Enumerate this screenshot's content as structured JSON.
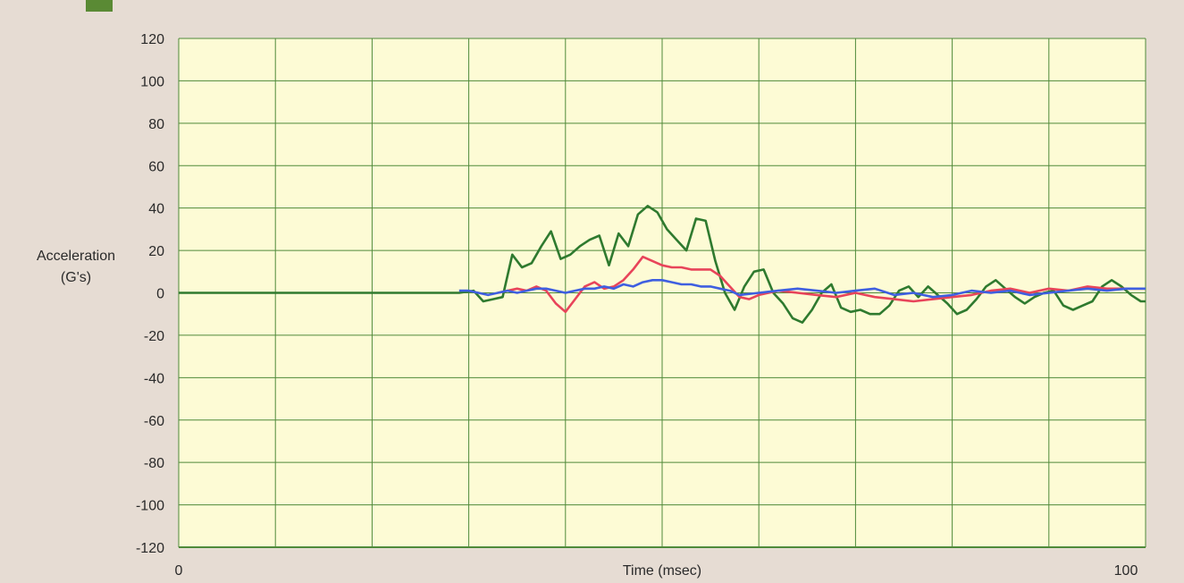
{
  "chart_data": {
    "type": "line",
    "title": "",
    "xlabel": "Time (msec)",
    "ylabel_lines": [
      "Acceleration",
      "(G's)"
    ],
    "xlim": [
      0,
      100
    ],
    "ylim": [
      -120,
      120
    ],
    "x_ticks": [
      0,
      100
    ],
    "x_gridlines": [
      0,
      10,
      20,
      30,
      40,
      50,
      60,
      70,
      80,
      90,
      100
    ],
    "y_ticks": [
      120,
      100,
      80,
      60,
      40,
      20,
      0,
      -20,
      -40,
      -60,
      -80,
      -100,
      -120
    ],
    "grid": true,
    "legend": "none",
    "colors": {
      "plot_bg": "#fdfbd5",
      "grid": "#4f8a3a",
      "page_bg": "#e6dcd3",
      "badge": "#5a8a34"
    },
    "series": [
      {
        "color": "#2f7a2f",
        "x": [
          0,
          29,
          30.5,
          31.5,
          32.5,
          33.5,
          34.5,
          35.5,
          36.5,
          37.5,
          38.5,
          39.5,
          40.5,
          41.5,
          42.5,
          43.5,
          44.5,
          45.5,
          46.5,
          47.5,
          48.5,
          49.5,
          50.5,
          51.5,
          52.5,
          53.5,
          54.5,
          55.5,
          56.5,
          57.5,
          58.5,
          59.5,
          60.5,
          61.5,
          62.5,
          63.5,
          64.5,
          65.5,
          66.5,
          67.5,
          68.5,
          69.5,
          70.5,
          71.5,
          72.5,
          73.5,
          74.5,
          75.5,
          76.5,
          77.5,
          78.5,
          79.5,
          80.5,
          81.5,
          82.5,
          83.5,
          84.5,
          85.5,
          86.5,
          87.5,
          88.5,
          89.5,
          90.5,
          91.5,
          92.5,
          93.5,
          94.5,
          95.5,
          96.5,
          97.5,
          98.5,
          99.5,
          100
        ],
        "y": [
          0,
          0,
          1,
          -4,
          -3,
          -2,
          18,
          12,
          14,
          22,
          29,
          16,
          18,
          22,
          25,
          27,
          13,
          28,
          22,
          37,
          41,
          38,
          30,
          25,
          20,
          35,
          34,
          15,
          0,
          -8,
          3,
          10,
          11,
          0,
          -5,
          -12,
          -14,
          -8,
          0,
          4,
          -7,
          -9,
          -8,
          -10,
          -10,
          -6,
          1,
          3,
          -2,
          3,
          -1,
          -5,
          -10,
          -8,
          -3,
          3,
          6,
          2,
          -2,
          -5,
          -2,
          0,
          1,
          -6,
          -8,
          -6,
          -4,
          3,
          6,
          3,
          -1,
          -4,
          -4
        ]
      },
      {
        "color": "#e8445a",
        "x": [
          33,
          34,
          35,
          36,
          37,
          38,
          39,
          40,
          41,
          42,
          43,
          44,
          45,
          46,
          47,
          48,
          49,
          50,
          51,
          52,
          53,
          54,
          55,
          56,
          57,
          58,
          59,
          60,
          62,
          64,
          66,
          68,
          70,
          72,
          74,
          76,
          78,
          80,
          82,
          84,
          86,
          88,
          90,
          92,
          94,
          96,
          98,
          100
        ],
        "y": [
          0,
          1,
          2,
          1,
          3,
          1,
          -5,
          -9,
          -3,
          3,
          5,
          2,
          3,
          6,
          11,
          17,
          15,
          13,
          12,
          12,
          11,
          11,
          11,
          8,
          3,
          -2,
          -3,
          -1,
          1,
          0,
          -1,
          -2,
          0,
          -2,
          -3,
          -4,
          -3,
          -2,
          -1,
          1,
          2,
          0,
          2,
          1,
          3,
          2,
          2,
          2
        ]
      },
      {
        "color": "#3f5fe0",
        "x": [
          29,
          30,
          31,
          32,
          33,
          34,
          35,
          36,
          37,
          38,
          39,
          40,
          41,
          42,
          43,
          44,
          45,
          46,
          47,
          48,
          49,
          50,
          51,
          52,
          53,
          54,
          55,
          56,
          57,
          58,
          60,
          62,
          64,
          66,
          68,
          70,
          72,
          74,
          76,
          78,
          80,
          82,
          84,
          86,
          88,
          90,
          92,
          94,
          96,
          98,
          100
        ],
        "y": [
          1,
          1,
          0,
          -1,
          0,
          1,
          0,
          1,
          2,
          2,
          1,
          0,
          1,
          2,
          2,
          3,
          2,
          4,
          3,
          5,
          6,
          6,
          5,
          4,
          4,
          3,
          3,
          2,
          1,
          -1,
          0,
          1,
          2,
          1,
          0,
          1,
          2,
          -1,
          0,
          -2,
          -1,
          1,
          0,
          1,
          -1,
          0,
          1,
          2,
          1,
          2,
          2
        ]
      }
    ]
  }
}
